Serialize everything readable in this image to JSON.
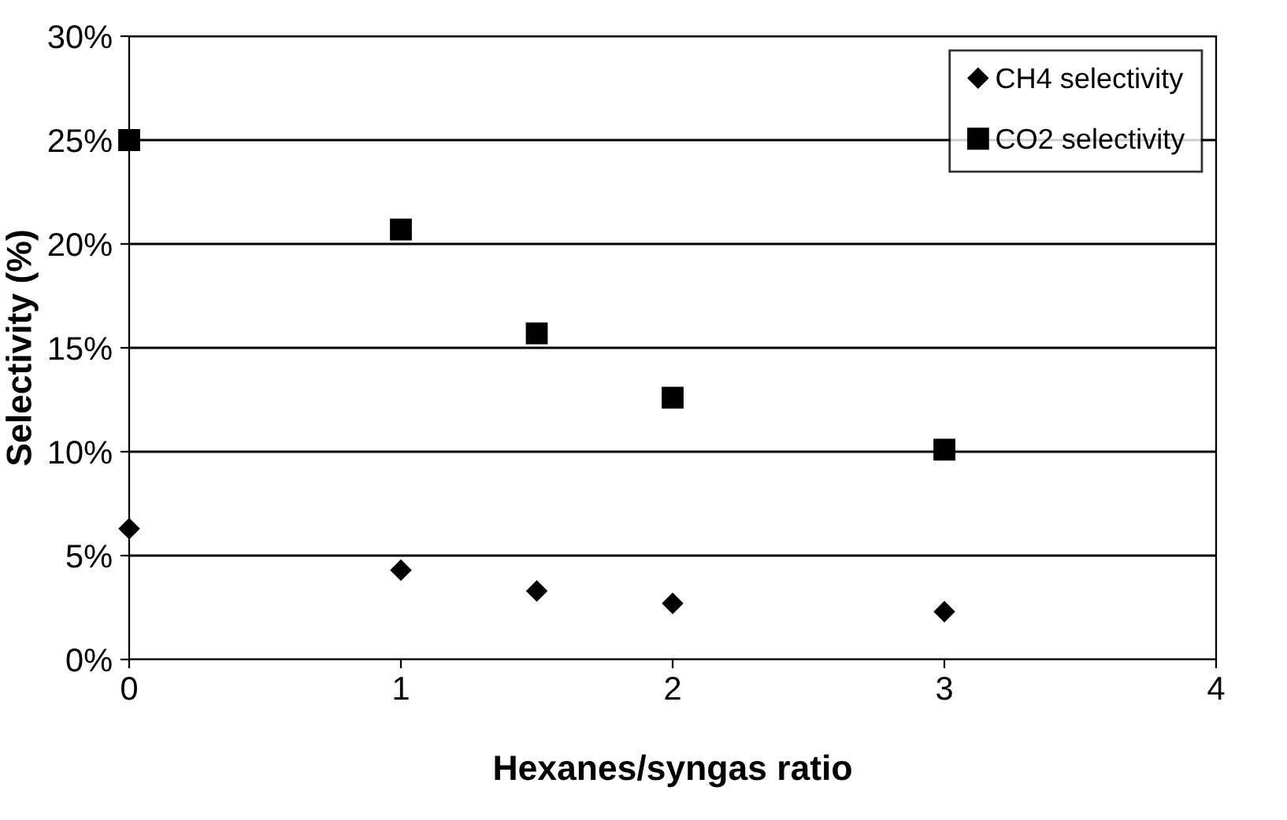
{
  "chart_data": {
    "type": "scatter",
    "xlabel": "Hexanes/syngas ratio",
    "ylabel": "Selectivity (%)",
    "x": [
      0,
      1,
      1.5,
      2,
      3
    ],
    "series": [
      {
        "name": "CH4 selectivity",
        "color": "#000000",
        "marker": "diamond",
        "values": [
          6.3,
          4.3,
          3.3,
          2.7,
          2.3
        ]
      },
      {
        "name": "CO2 selectivity",
        "color": "#000000",
        "marker": "square",
        "values": [
          25.0,
          20.7,
          15.7,
          12.6,
          10.1
        ]
      }
    ],
    "xlim": [
      0,
      4
    ],
    "xticks": [
      0,
      1,
      2,
      3,
      4
    ],
    "ylim": [
      0,
      30
    ],
    "yticks": [
      {
        "value": 0,
        "label": "0%"
      },
      {
        "value": 5,
        "label": "5%"
      },
      {
        "value": 10,
        "label": "10%"
      },
      {
        "value": 15,
        "label": "15%"
      },
      {
        "value": 20,
        "label": "20%"
      },
      {
        "value": 25,
        "label": "25%"
      },
      {
        "value": 30,
        "label": "30%"
      }
    ],
    "grid": "y",
    "legend": "top right"
  }
}
